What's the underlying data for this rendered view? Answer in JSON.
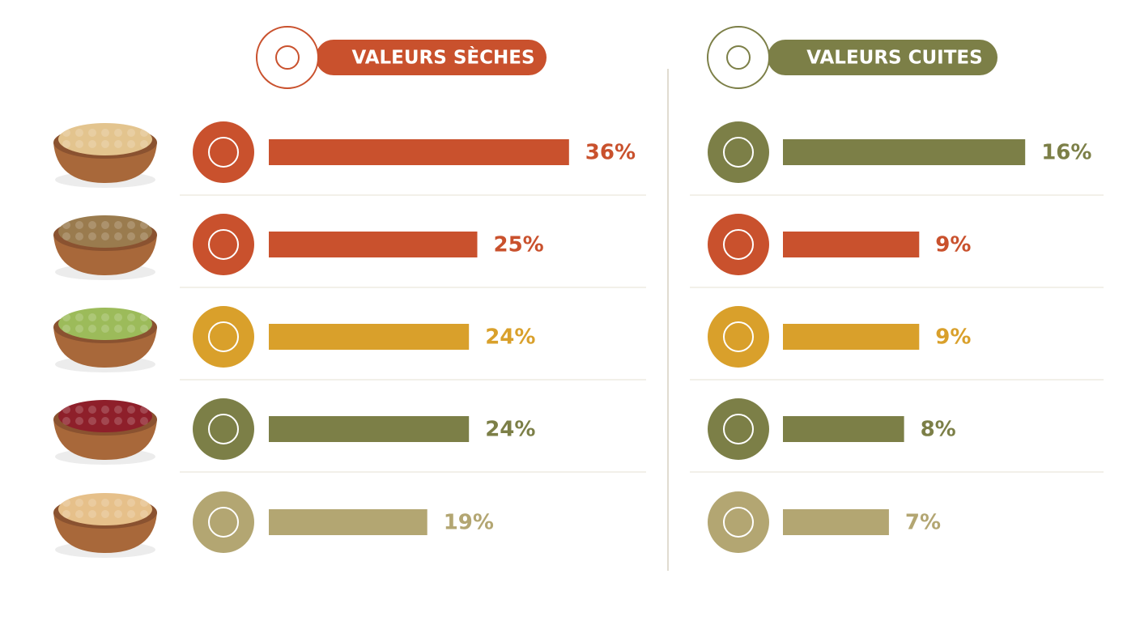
{
  "chart_data": [
    {
      "type": "bar",
      "title": "VALEURS SÈCHES",
      "header_color": "#c9512d",
      "values": [
        36,
        25,
        24,
        24,
        19
      ],
      "value_labels": [
        "36%",
        "25%",
        "24%",
        "24%",
        "19%"
      ],
      "colors": [
        "#c9512d",
        "#c9512d",
        "#d9a02b",
        "#7c7f47",
        "#b3a672"
      ]
    },
    {
      "type": "bar",
      "title": "VALEURS CUITES",
      "header_color": "#7c7f47",
      "values": [
        16,
        9,
        9,
        8,
        7
      ],
      "value_labels": [
        "16%",
        "9%",
        "9%",
        "8%",
        "7%"
      ],
      "colors": [
        "#7c7f47",
        "#c9512d",
        "#d9a02b",
        "#7c7f47",
        "#b3a672"
      ]
    }
  ]
}
